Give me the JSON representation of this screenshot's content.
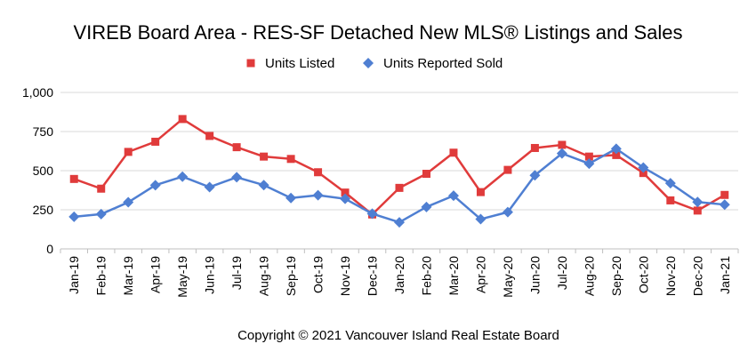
{
  "chart_data": {
    "type": "line",
    "title": "VIREB Board Area - RES-SF Detached New MLS® Listings and Sales",
    "footer": "Copyright © 2021 Vancouver Island Real Estate Board",
    "categories": [
      "Jan-19",
      "Feb-19",
      "Mar-19",
      "Apr-19",
      "May-19",
      "Jun-19",
      "Jul-19",
      "Aug-19",
      "Sep-19",
      "Oct-19",
      "Nov-19",
      "Dec-19",
      "Jan-20",
      "Feb-20",
      "Mar-20",
      "Apr-20",
      "May-20",
      "Jun-20",
      "Jul-20",
      "Aug-20",
      "Sep-20",
      "Oct-20",
      "Nov-20",
      "Dec-20",
      "Jan-21"
    ],
    "ylim": [
      0,
      1000
    ],
    "yticks": [
      0,
      250,
      500,
      750,
      1000
    ],
    "ytick_labels": [
      "0",
      "250",
      "500",
      "750",
      "1,000"
    ],
    "grid": true,
    "legend_position": "top-center",
    "series": [
      {
        "name": "Units Listed",
        "color": "#e03b3b",
        "marker": "square",
        "values": [
          447,
          385,
          620,
          685,
          830,
          722,
          650,
          590,
          575,
          490,
          360,
          220,
          390,
          480,
          615,
          363,
          505,
          645,
          665,
          590,
          600,
          485,
          310,
          245,
          345
        ]
      },
      {
        "name": "Units Reported Sold",
        "color": "#4f7fd2",
        "marker": "diamond",
        "values": [
          205,
          222,
          298,
          407,
          462,
          395,
          458,
          408,
          325,
          343,
          320,
          225,
          170,
          268,
          340,
          190,
          235,
          470,
          610,
          545,
          640,
          520,
          420,
          300,
          283
        ]
      }
    ]
  }
}
